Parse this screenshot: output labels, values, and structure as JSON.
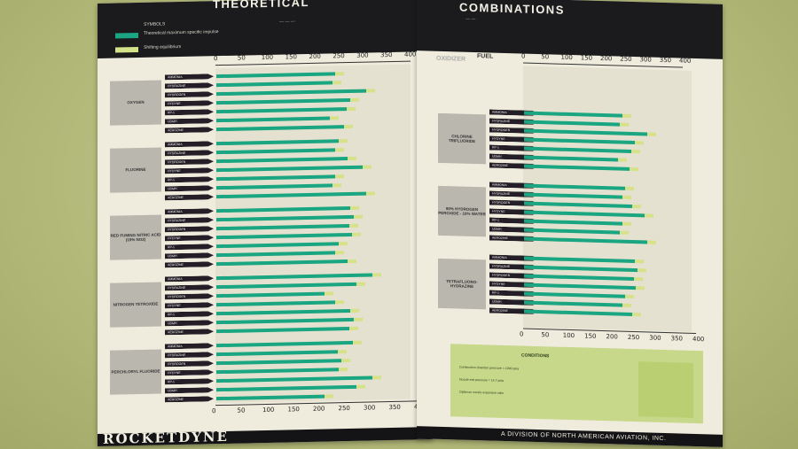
{
  "photo": {
    "subject": "Rocketdyne chart of oxidizer and fuel combinations",
    "background_color": "#b5bb7c",
    "paper_color": "#efecdd",
    "band_color": "#1b1b1e",
    "bar_green": "#1aa583",
    "bar_yellow": "#d6e289"
  },
  "header": {
    "left_title": "THEORETICAL",
    "right_title": "COMBINATIONS",
    "legend": {
      "heading": "SYMBOLS",
      "item_1": "Theoretical maximum specific impulse",
      "item_2": "Shifting equilibrium"
    }
  },
  "columns": {
    "oxidizer": "OXIDIZER",
    "fuel": "FUEL"
  },
  "left_axis": {
    "ticks": [
      "0",
      "50",
      "100",
      "150",
      "200",
      "250",
      "300",
      "350",
      "400"
    ]
  },
  "right_axis": {
    "ticks": [
      "0",
      "50",
      "100",
      "150",
      "200",
      "250",
      "300",
      "350",
      "400"
    ]
  },
  "left_groups": [
    {
      "oxidizer": "OXYGEN"
    },
    {
      "oxidizer": "FLUORINE"
    },
    {
      "oxidizer": "RED FUMING NITRIC ACID (15% NO2)"
    },
    {
      "oxidizer": "NITROGEN TETROXIDE"
    },
    {
      "oxidizer": "PERCHLORYL FLUORIDE"
    }
  ],
  "right_groups": [
    {
      "oxidizer": "CHLORINE TRIFLUORIDE"
    },
    {
      "oxidizer": "90% HYDROGEN PEROXIDE - 10% WATER"
    },
    {
      "oxidizer": "TETRAFLUORO-HYDRAZINE"
    }
  ],
  "fuels": [
    "AMMONIA",
    "HYDRAZINE",
    "HYDROGEN",
    "HYDYNE",
    "RP-1",
    "UDMH",
    "AEROZINE"
  ],
  "conditions": {
    "title": "CONDITIONS",
    "line_1": "Combustion chamber pressure = 1000 psia",
    "line_2": "Nozzle exit pressure = 14.7 psia",
    "line_3": "Optimum nozzle expansion ratio"
  },
  "footer": {
    "brand": "ROCKETDYNE",
    "division": "A DIVISION OF NORTH AMERICAN AVIATION, INC."
  }
}
